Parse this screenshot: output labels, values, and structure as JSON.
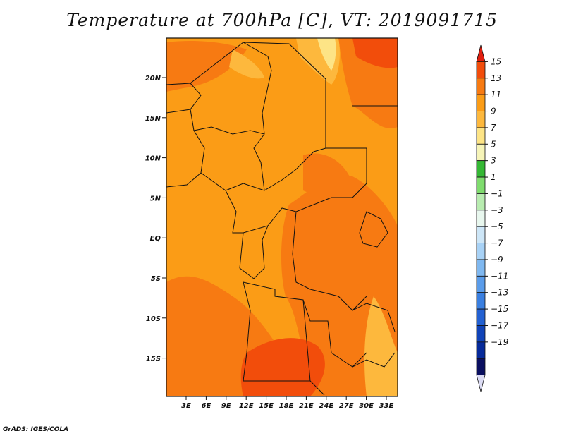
{
  "title": "Temperature at 700hPa [C], VT: 2019091715",
  "credit": "GrADS: IGES/COLA",
  "map": {
    "lat_labels": [
      "20N",
      "15N",
      "10N",
      "5N",
      "EQ",
      "5S",
      "10S",
      "15S"
    ],
    "lon_labels": [
      "3E",
      "6E",
      "9E",
      "12E",
      "15E",
      "18E",
      "21E",
      "24E",
      "27E",
      "30E",
      "33E"
    ]
  },
  "colorbar": {
    "labels": [
      "15",
      "13",
      "11",
      "9",
      "7",
      "5",
      "3",
      "1",
      "−1",
      "−3",
      "−5",
      "−7",
      "−9",
      "−11",
      "−13",
      "−15",
      "−17",
      "−19"
    ],
    "colors": [
      "#e01f0f",
      "#f24d0b",
      "#f77a12",
      "#fb9c16",
      "#fdb83d",
      "#fde486",
      "#f6f4b8",
      "#35b835",
      "#7fdc6e",
      "#b8ecb0",
      "#e8f7ee",
      "#cde6f7",
      "#a8d2f6",
      "#7fb8f0",
      "#5a9cea",
      "#3a7fe0",
      "#2361d2",
      "#1043b8",
      "#062a9a",
      "#0a0f60",
      "#dcdcf4"
    ]
  },
  "colors": {
    "land_base": "#fb9c16",
    "warm_1": "#f77a12",
    "warm_2": "#f24d0b",
    "cool_1": "#fdb83d",
    "cool_2": "#fde486"
  }
}
